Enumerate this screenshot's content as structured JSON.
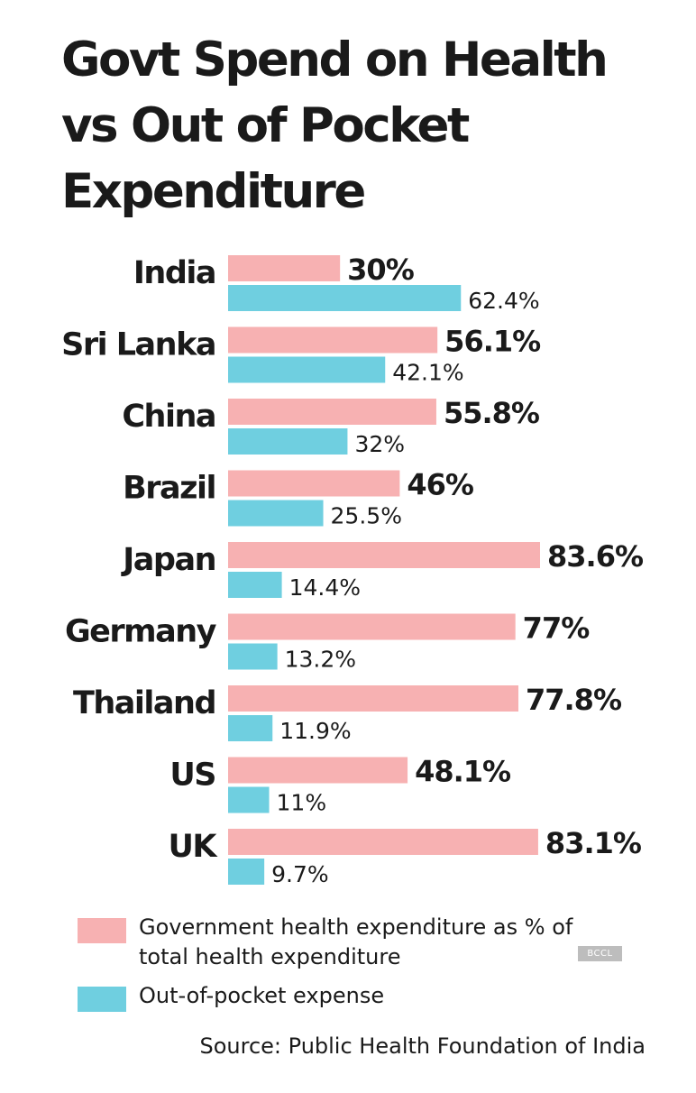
{
  "chart_data": {
    "type": "bar",
    "orientation": "horizontal",
    "title": "Govt Spend on Health vs Out of Pocket Expenditure",
    "categories": [
      "India",
      "Sri Lanka",
      "China",
      "Brazil",
      "Japan",
      "Germany",
      "Thailand",
      "US",
      "UK"
    ],
    "series": [
      {
        "name": "Government health expenditure as % of total health expenditure",
        "color": "#f7b1b2",
        "values": [
          30,
          56.1,
          55.8,
          46,
          83.6,
          77,
          77.8,
          48.1,
          83.1
        ],
        "labels": [
          "30%",
          "56.1%",
          "55.8%",
          "46%",
          "83.6%",
          "77%",
          "77.8%",
          "48.1%",
          "83.1%"
        ]
      },
      {
        "name": "Out-of-pocket expense",
        "color": "#6fcfe0",
        "values": [
          62.4,
          42.1,
          32,
          25.5,
          14.4,
          13.2,
          11.9,
          11,
          9.7
        ],
        "labels": [
          "62.4%",
          "42.1%",
          "32%",
          "25.5%",
          "14.4%",
          "13.2%",
          "11.9%",
          "11%",
          "9.7%"
        ]
      }
    ],
    "xlabel": "",
    "ylabel": "",
    "xlim": [
      0,
      83.6
    ],
    "grid": false,
    "legend_position": "bottom-left"
  },
  "legend": {
    "gov": "Government health expenditure as % of total health expenditure",
    "oop": "Out-of-pocket expense"
  },
  "badge": "BCCL",
  "source": "Source: Public Health Foundation of India"
}
